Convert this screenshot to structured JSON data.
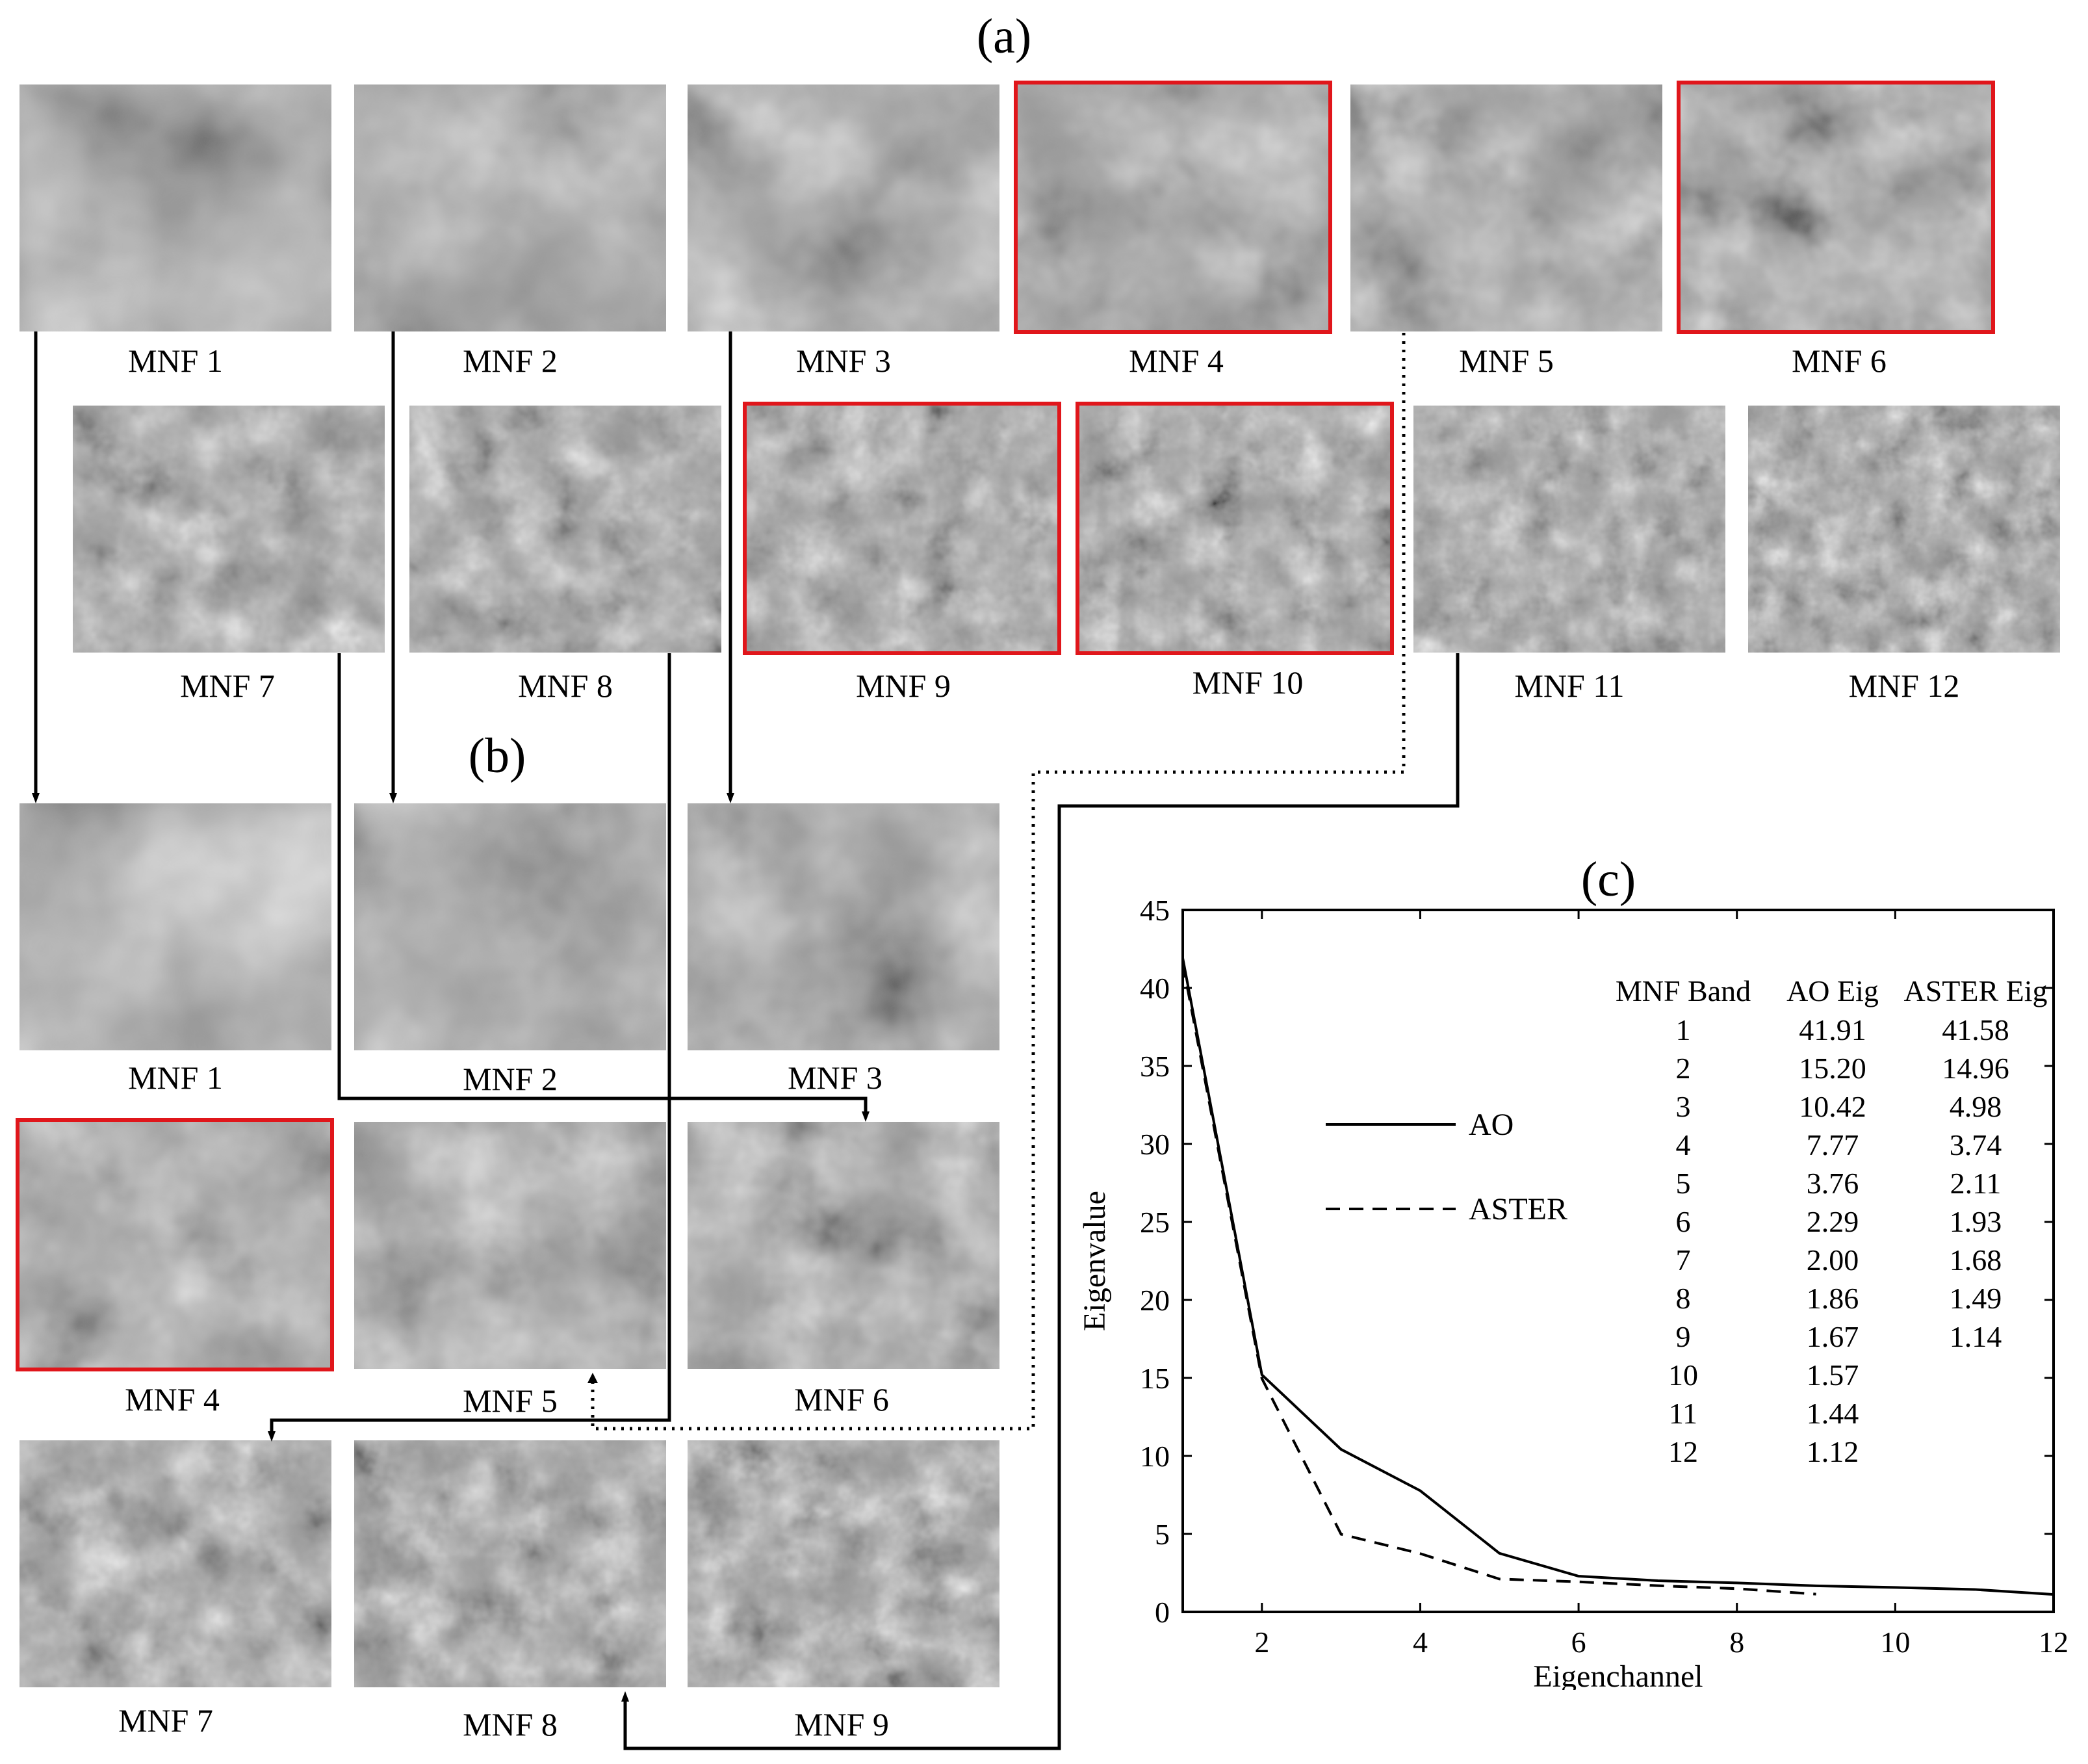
{
  "panels": {
    "a": "(a)",
    "b": "(b)",
    "c": "(c)"
  },
  "section_a": {
    "tiles": [
      {
        "caption": "MNF 1",
        "highlighted": false
      },
      {
        "caption": "MNF 2",
        "highlighted": false
      },
      {
        "caption": "MNF 3",
        "highlighted": false
      },
      {
        "caption": "MNF 4",
        "highlighted": true
      },
      {
        "caption": "MNF 5",
        "highlighted": false
      },
      {
        "caption": "MNF 6",
        "highlighted": true
      },
      {
        "caption": "MNF 7",
        "highlighted": false
      },
      {
        "caption": "MNF 8",
        "highlighted": false
      },
      {
        "caption": "MNF 9",
        "highlighted": true
      },
      {
        "caption": "MNF 10",
        "highlighted": true
      },
      {
        "caption": "MNF 11",
        "highlighted": false
      },
      {
        "caption": "MNF 12",
        "highlighted": false
      }
    ]
  },
  "section_b": {
    "tiles": [
      {
        "caption": "MNF 1",
        "highlighted": false
      },
      {
        "caption": "MNF 2",
        "highlighted": false
      },
      {
        "caption": "MNF 3",
        "highlighted": false
      },
      {
        "caption": "MNF 4",
        "highlighted": true
      },
      {
        "caption": "MNF 5",
        "highlighted": false
      },
      {
        "caption": "MNF 6",
        "highlighted": false
      },
      {
        "caption": "MNF 7",
        "highlighted": false
      },
      {
        "caption": "MNF 8",
        "highlighted": false
      },
      {
        "caption": "MNF 9",
        "highlighted": false
      }
    ]
  },
  "colors": {
    "highlight": "#e0161b",
    "line": "#000000"
  },
  "chart_data": {
    "type": "line",
    "xlabel": "Eigenchannel",
    "ylabel": "Eigenvalue",
    "xlim": [
      1,
      12
    ],
    "ylim": [
      0,
      45
    ],
    "xticks": [
      2,
      4,
      6,
      8,
      10,
      12
    ],
    "yticks": [
      0,
      5,
      10,
      15,
      20,
      25,
      30,
      35,
      40,
      45
    ],
    "grid": false,
    "legend_position": "left",
    "series": [
      {
        "name": "AO",
        "style": "solid",
        "x": [
          1,
          2,
          3,
          4,
          5,
          6,
          7,
          8,
          9,
          10,
          11,
          12
        ],
        "values": [
          41.91,
          15.2,
          10.42,
          7.77,
          3.76,
          2.29,
          2.0,
          1.86,
          1.67,
          1.57,
          1.44,
          1.12
        ]
      },
      {
        "name": "ASTER",
        "style": "dashed",
        "x": [
          1,
          2,
          3,
          4,
          5,
          6,
          7,
          8,
          9
        ],
        "values": [
          41.58,
          14.96,
          4.98,
          3.74,
          2.11,
          1.93,
          1.68,
          1.49,
          1.14
        ]
      }
    ],
    "table": {
      "headers": [
        "MNF Band",
        "AO Eig",
        "ASTER Eig"
      ],
      "rows": [
        [
          "1",
          "41.91",
          "41.58"
        ],
        [
          "2",
          "15.20",
          "14.96"
        ],
        [
          "3",
          "10.42",
          "4.98"
        ],
        [
          "4",
          "7.77",
          "3.74"
        ],
        [
          "5",
          "3.76",
          "2.11"
        ],
        [
          "6",
          "2.29",
          "1.93"
        ],
        [
          "7",
          "2.00",
          "1.68"
        ],
        [
          "8",
          "1.86",
          "1.49"
        ],
        [
          "9",
          "1.67",
          "1.14"
        ],
        [
          "10",
          "1.57",
          ""
        ],
        [
          "11",
          "1.44",
          ""
        ],
        [
          "12",
          "1.12",
          ""
        ]
      ]
    }
  }
}
